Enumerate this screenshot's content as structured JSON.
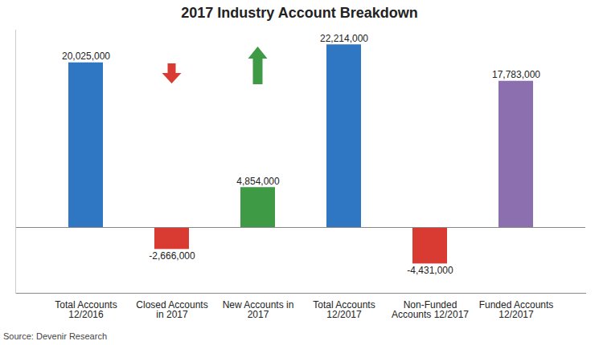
{
  "chart_data": {
    "type": "bar",
    "title": "2017 Industry Account Breakdown",
    "caption": "Source: Devenir Research",
    "categories": [
      "Total Accounts\n12/2016",
      "Closed Accounts\nin 2017",
      "New Accounts in\n2017",
      "Total Accounts\n12/2017",
      "Non-Funded\nAccounts 12/2017",
      "Funded Accounts\n12/2017"
    ],
    "values": [
      20025000,
      -2666000,
      4854000,
      22214000,
      -4431000,
      17783000
    ],
    "value_labels": [
      "20,025,000",
      "-2,666,000",
      "4,854,000",
      "22,214,000",
      "-4,431,000",
      "17,783,000"
    ],
    "colors": [
      "#2f76c3",
      "#d93a31",
      "#3f9a45",
      "#2f76c3",
      "#d93a31",
      "#8b6fae"
    ],
    "ylim": [
      -8000000,
      24000000
    ],
    "yticks": [
      0
    ],
    "data_labels": true,
    "tick_labels": "x"
  }
}
